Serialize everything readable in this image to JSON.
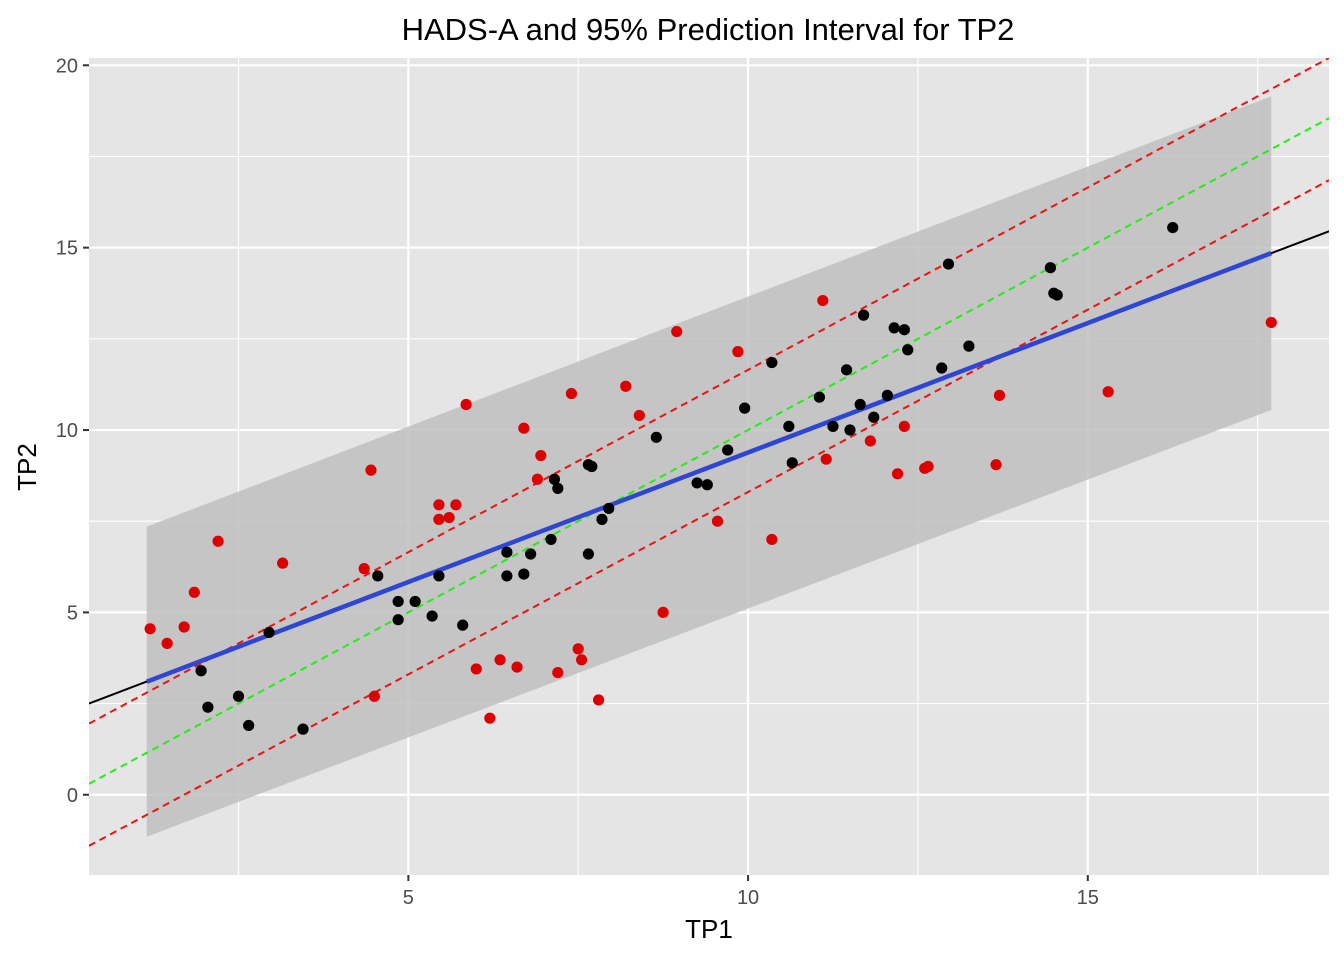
{
  "chart_data": {
    "type": "scatter",
    "title": "HADS-A and 95% Prediction Interval for TP2",
    "xlabel": "TP1",
    "ylabel": "TP2",
    "xlim": [
      0.3,
      18.55
    ],
    "ylim": [
      -2.2,
      20.2
    ],
    "x_ticks": [
      5,
      10,
      15
    ],
    "y_ticks": [
      0,
      5,
      10,
      15,
      20
    ],
    "grid": true,
    "colors": {
      "panel": "#e5e5e5",
      "grid_major": "#ffffff",
      "band": "#bfbfbf",
      "fit": "#2e45d6",
      "reference": "#000000",
      "identity": "#22ee11",
      "limits": "#ee1111",
      "point_inside": "#000000",
      "point_outside": "#dd0000"
    },
    "prediction_band": {
      "x": [
        1.15,
        17.7
      ],
      "lower": [
        -1.15,
        10.55
      ],
      "upper": [
        7.35,
        19.15
      ]
    },
    "lines": {
      "fit": {
        "x": [
          1.15,
          17.7
        ],
        "y": [
          3.1,
          14.85
        ]
      },
      "reference": {
        "x": [
          0.3,
          18.55
        ],
        "y": [
          2.5,
          15.45
        ]
      },
      "identity": {
        "x": [
          0.3,
          18.55
        ],
        "y": [
          0.3,
          18.55
        ]
      },
      "upper_limit": {
        "x": [
          0.3,
          18.55
        ],
        "y": [
          1.95,
          20.2
        ]
      },
      "lower_limit": {
        "x": [
          0.3,
          18.55
        ],
        "y": [
          -1.4,
          16.85
        ]
      }
    },
    "series": [
      {
        "group": "inside",
        "x": [
          1.95,
          2.05,
          2.5,
          2.65,
          2.95,
          3.45,
          4.55,
          4.85,
          4.85,
          5.1,
          5.35,
          5.45,
          5.8,
          6.45,
          6.45,
          6.7,
          6.8,
          7.1,
          7.15,
          7.2,
          7.65,
          7.7,
          7.65,
          7.85,
          7.95,
          8.65,
          9.25,
          9.4,
          9.7,
          9.95,
          10.35,
          10.6,
          10.65,
          11.05,
          11.25,
          11.45,
          11.5,
          11.65,
          11.7,
          11.85,
          12.05,
          12.15,
          12.3,
          12.35,
          12.85,
          12.95,
          13.25,
          14.45,
          14.5,
          14.55,
          16.25
        ],
        "y": [
          3.4,
          2.4,
          2.7,
          1.9,
          4.45,
          1.8,
          6.0,
          5.3,
          4.8,
          5.3,
          4.9,
          6.0,
          4.65,
          6.65,
          6.0,
          6.05,
          6.6,
          7.0,
          8.65,
          8.4,
          9.05,
          9.0,
          6.6,
          7.55,
          7.85,
          9.8,
          8.55,
          8.5,
          9.45,
          10.6,
          11.85,
          10.1,
          9.1,
          10.9,
          10.1,
          11.65,
          10.0,
          10.7,
          13.15,
          10.35,
          10.95,
          12.8,
          12.75,
          12.2,
          11.7,
          14.55,
          12.3,
          14.45,
          13.75,
          13.7,
          15.55
        ]
      },
      {
        "group": "outside",
        "x": [
          1.2,
          1.45,
          1.7,
          1.85,
          2.2,
          3.15,
          4.35,
          4.45,
          4.5,
          5.45,
          5.45,
          5.6,
          5.7,
          5.85,
          6.0,
          6.2,
          6.35,
          6.6,
          6.7,
          6.9,
          6.95,
          7.2,
          7.4,
          7.5,
          7.55,
          7.8,
          8.2,
          8.4,
          8.75,
          8.95,
          9.55,
          9.85,
          10.35,
          11.1,
          11.15,
          11.8,
          12.2,
          12.3,
          12.6,
          12.65,
          13.65,
          13.7,
          15.3,
          17.7
        ],
        "y": [
          4.55,
          4.15,
          4.6,
          5.55,
          6.95,
          6.35,
          6.2,
          8.9,
          2.7,
          7.95,
          7.55,
          7.6,
          7.95,
          10.7,
          3.45,
          2.1,
          3.7,
          3.5,
          10.05,
          8.65,
          9.3,
          3.35,
          11.0,
          4.0,
          3.7,
          2.6,
          11.2,
          10.4,
          5.0,
          12.7,
          7.5,
          12.15,
          7.0,
          13.55,
          9.2,
          9.7,
          8.8,
          10.1,
          8.95,
          9.0,
          9.05,
          10.95,
          11.05,
          12.95
        ]
      }
    ]
  }
}
